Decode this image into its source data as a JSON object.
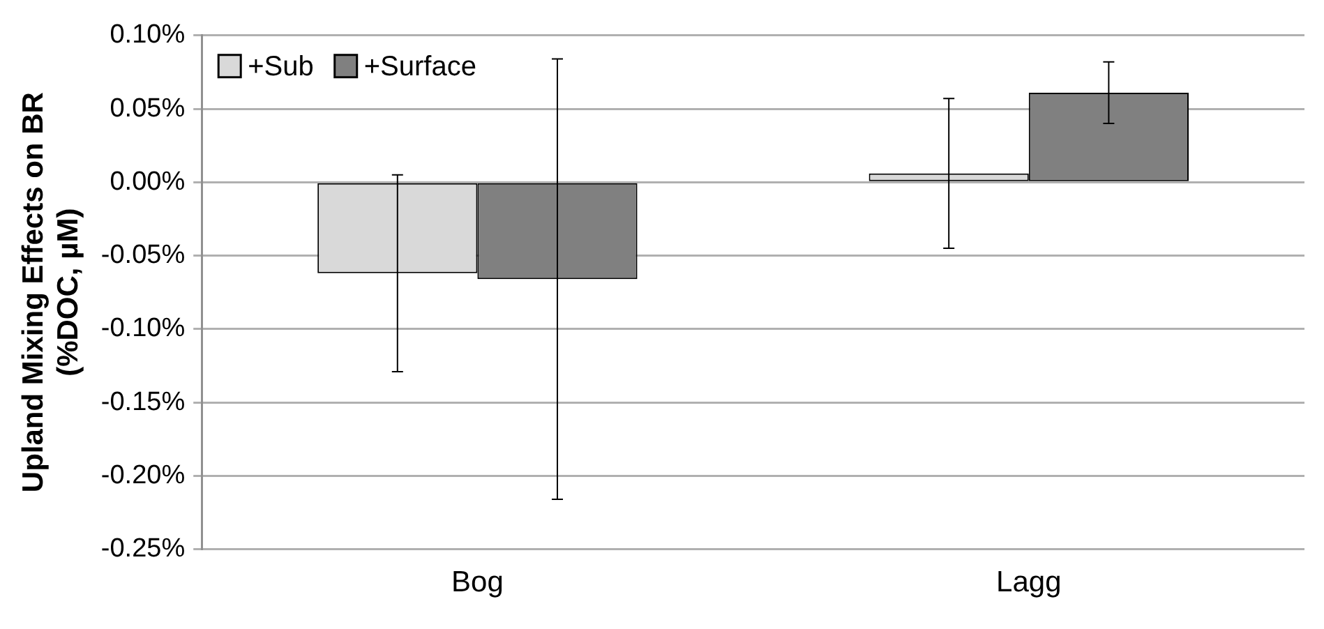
{
  "chart_data": {
    "type": "bar",
    "ylabel": "Upland Mixing Effects on BR\n(%DOC, µM)",
    "categories": [
      "Bog",
      "Lagg"
    ],
    "series": [
      {
        "name": "+Sub",
        "color": "#d9d9d9",
        "values": [
          -0.062,
          0.006
        ],
        "errors": [
          0.067,
          0.051
        ]
      },
      {
        "name": "+Surface",
        "color": "#808080",
        "values": [
          -0.066,
          0.061
        ],
        "errors": [
          0.15,
          0.021
        ]
      }
    ],
    "ylim": [
      -0.25,
      0.1
    ],
    "yticks": [
      {
        "value": -0.25,
        "label": "-0.25%"
      },
      {
        "value": -0.2,
        "label": "-0.20%"
      },
      {
        "value": -0.15,
        "label": "-0.15%"
      },
      {
        "value": -0.1,
        "label": "-0.10%"
      },
      {
        "value": -0.05,
        "label": "-0.05%"
      },
      {
        "value": 0,
        "label": "0.00%"
      },
      {
        "value": 0.05,
        "label": "0.05%"
      },
      {
        "value": 0.1,
        "label": "0.10%"
      }
    ],
    "grid": "y",
    "legend": "top left"
  }
}
